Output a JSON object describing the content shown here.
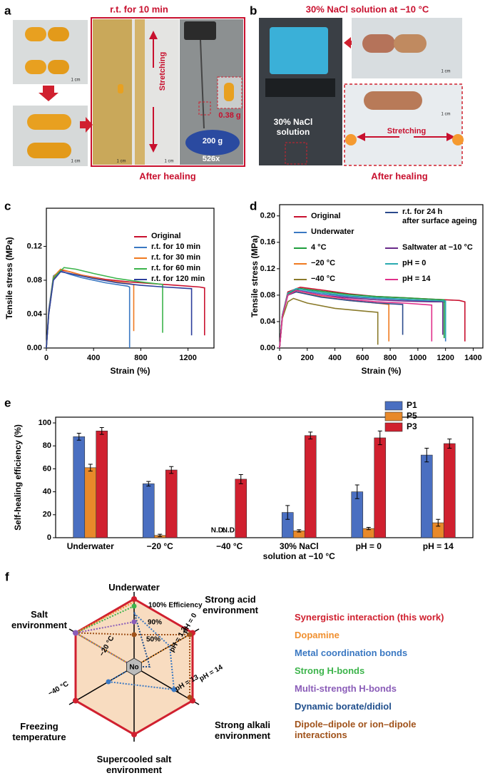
{
  "panel_a": {
    "label": "a",
    "title": "r.t. for 10 min",
    "stretching": "Stretching",
    "weight": "0.38 g",
    "load": "200 g",
    "magnification": "526x",
    "caption": "After healing",
    "scale_bars": [
      "1 cm",
      "1 cm",
      "1 cm",
      "1 cm"
    ]
  },
  "panel_b": {
    "label": "b",
    "title": "30% NaCl solution at −10 °C",
    "solution": "30% NaCl\nsolution",
    "stretching": "Stretching",
    "caption": "After healing",
    "scale_bars": [
      "1 cm",
      "1 cm"
    ]
  },
  "chart_data": [
    {
      "type": "line",
      "panel_label": "c",
      "xlabel": "Strain (%)",
      "ylabel": "Tensile stress (MPa)",
      "xlim": [
        0,
        1420
      ],
      "xticks": [
        0,
        400,
        800,
        1200
      ],
      "ylim": [
        0,
        0.165
      ],
      "yticks": [
        {
          "value": 0,
          "label": "0.00"
        },
        0.04,
        0.08,
        0.12
      ],
      "series": [
        {
          "name": "Original",
          "color": "#c8102e",
          "x": [
            0,
            20,
            60,
            120,
            200,
            300,
            500,
            700,
            900,
            1100,
            1300,
            1340,
            1340
          ],
          "values": [
            0,
            0.04,
            0.082,
            0.092,
            0.09,
            0.086,
            0.081,
            0.078,
            0.076,
            0.074,
            0.072,
            0.071,
            0.015
          ]
        },
        {
          "name": "r.t. for 10 min",
          "color": "#3a78c2",
          "x": [
            0,
            20,
            60,
            120,
            200,
            300,
            500,
            690,
            705,
            705
          ],
          "values": [
            0,
            0.045,
            0.085,
            0.091,
            0.087,
            0.083,
            0.077,
            0.073,
            0.072,
            0
          ]
        },
        {
          "name": "r.t. for 30 min",
          "color": "#f07a20",
          "x": [
            0,
            20,
            60,
            120,
            200,
            300,
            500,
            700,
            740,
            740
          ],
          "values": [
            0,
            0.042,
            0.084,
            0.093,
            0.09,
            0.086,
            0.08,
            0.076,
            0.075,
            0.02
          ]
        },
        {
          "name": "r.t. for 60 min",
          "color": "#3cb44b",
          "x": [
            0,
            20,
            60,
            150,
            250,
            400,
            600,
            800,
            985,
            985
          ],
          "values": [
            0,
            0.04,
            0.083,
            0.095,
            0.093,
            0.088,
            0.082,
            0.078,
            0.075,
            0.018
          ]
        },
        {
          "name": "r.t. for 120 min",
          "color": "#2c3e9c",
          "x": [
            0,
            20,
            60,
            120,
            200,
            400,
            600,
            800,
            1000,
            1230,
            1230
          ],
          "values": [
            0,
            0.04,
            0.08,
            0.09,
            0.088,
            0.082,
            0.077,
            0.074,
            0.072,
            0.07,
            0.015
          ]
        }
      ]
    },
    {
      "type": "line",
      "panel_label": "d",
      "xlabel": "Strain (%)",
      "ylabel": "Tensile stress (MPa)",
      "xlim": [
        0,
        1470
      ],
      "xticks": [
        0,
        200,
        400,
        600,
        800,
        1000,
        1200,
        1400
      ],
      "ylim": [
        0,
        0.217
      ],
      "yticks": [
        {
          "value": 0,
          "label": "0.00"
        },
        0.04,
        0.08,
        0.12,
        0.16,
        {
          "value": 0.2,
          "label": "0.20"
        }
      ],
      "series": [
        {
          "name": "Original",
          "color": "#c8102e",
          "x": [
            0,
            20,
            60,
            150,
            300,
            500,
            700,
            900,
            1100,
            1300,
            1340,
            1340
          ],
          "values": [
            0,
            0.05,
            0.085,
            0.092,
            0.088,
            0.082,
            0.078,
            0.076,
            0.074,
            0.072,
            0.07,
            0.01
          ]
        },
        {
          "name": "Underwater",
          "color": "#3a78c2",
          "x": [
            0,
            20,
            60,
            120,
            300,
            500,
            700,
            900,
            1100,
            1200,
            1200
          ],
          "values": [
            0,
            0.05,
            0.082,
            0.088,
            0.082,
            0.078,
            0.075,
            0.073,
            0.071,
            0.07,
            0.01
          ]
        },
        {
          "name": "4 °C",
          "color": "#1e9e3c",
          "x": [
            0,
            20,
            60,
            150,
            300,
            500,
            700,
            900,
            1100,
            1190,
            1190
          ],
          "values": [
            0,
            0.048,
            0.082,
            0.09,
            0.086,
            0.081,
            0.078,
            0.076,
            0.074,
            0.073,
            0.015
          ]
        },
        {
          "name": "−20 °C",
          "color": "#f07a20",
          "x": [
            0,
            20,
            60,
            120,
            300,
            500,
            700,
            790,
            790
          ],
          "values": [
            0,
            0.05,
            0.08,
            0.085,
            0.078,
            0.072,
            0.068,
            0.066,
            0.01
          ]
        },
        {
          "name": "−40 °C",
          "color": "#8a7a2a",
          "x": [
            0,
            20,
            60,
            100,
            200,
            400,
            600,
            710,
            710
          ],
          "values": [
            0,
            0.045,
            0.07,
            0.075,
            0.068,
            0.06,
            0.056,
            0.054,
            0.005
          ]
        },
        {
          "name": "r.t. for 24 h\nafter surface ageing",
          "color": "#2b4a8c",
          "x": [
            0,
            20,
            60,
            120,
            300,
            500,
            700,
            890,
            890
          ],
          "values": [
            0,
            0.05,
            0.08,
            0.085,
            0.077,
            0.072,
            0.068,
            0.066,
            0.02
          ]
        },
        {
          "name": "Saltwater at −10 °C",
          "color": "#6a2a8a",
          "x": [
            0,
            20,
            60,
            120,
            300,
            500,
            700,
            900,
            1100,
            1180,
            1180
          ],
          "values": [
            0,
            0.05,
            0.08,
            0.087,
            0.08,
            0.076,
            0.073,
            0.071,
            0.07,
            0.07,
            0.02
          ]
        },
        {
          "name": "pH = 0",
          "color": "#2aaab0",
          "x": [
            0,
            20,
            60,
            120,
            300,
            500,
            700,
            900,
            1100,
            1200,
            1200
          ],
          "values": [
            0,
            0.05,
            0.083,
            0.09,
            0.084,
            0.079,
            0.076,
            0.074,
            0.072,
            0.071,
            0.015
          ]
        },
        {
          "name": "pH = 14",
          "color": "#e0308a",
          "x": [
            0,
            20,
            60,
            120,
            300,
            500,
            700,
            900,
            1100,
            1100
          ],
          "values": [
            0,
            0.048,
            0.08,
            0.087,
            0.08,
            0.074,
            0.07,
            0.068,
            0.065,
            0.01
          ]
        }
      ]
    },
    {
      "type": "bar",
      "panel_label": "e",
      "ylabel": "Self-healing efficiency (%)",
      "categories": [
        "Underwater",
        "−20 °C",
        "−40 °C",
        "30% NaCl\nsolution at −10 °C",
        "pH = 0",
        "pH = 14"
      ],
      "ylim": [
        0,
        105
      ],
      "yticks": [
        0,
        20,
        40,
        60,
        80,
        100
      ],
      "series": [
        {
          "name": "P1",
          "color": "#4a6fc1",
          "values": [
            88,
            47,
            null,
            22,
            40,
            72
          ],
          "errors": [
            3,
            2,
            null,
            6,
            6,
            6
          ],
          "value_labels": [
            null,
            null,
            "N.D.",
            null,
            null,
            null
          ]
        },
        {
          "name": "P5",
          "color": "#e8892a",
          "values": [
            61,
            2,
            null,
            6,
            8,
            13
          ],
          "errors": [
            3,
            1,
            null,
            1,
            1,
            3
          ],
          "value_labels": [
            null,
            null,
            "N.D.",
            null,
            null,
            null
          ]
        },
        {
          "name": "P3",
          "color": "#d0202f",
          "values": [
            93,
            59,
            51,
            89,
            87,
            82
          ],
          "errors": [
            3,
            3,
            4,
            3,
            6,
            4
          ],
          "value_labels": [
            null,
            null,
            null,
            null,
            null,
            null
          ]
        }
      ]
    }
  ],
  "diagram_f": {
    "panel_label": "f",
    "axes": [
      "Underwater",
      "Strong acid\nenvironment",
      "Strong alkali\nenvironment",
      "Supercooled salt\nenvironment",
      "Freezing\ntemperature",
      "Salt\nenvironment"
    ],
    "scale_labels": [
      "100% Efficiency",
      "90%",
      "50%",
      "No"
    ],
    "condition_labels": [
      "pH = 1.3",
      "pH = 0",
      "pH = 13",
      "pH = 14",
      "−20 °C",
      "−40 °C"
    ],
    "legend": [
      {
        "label": "Synergistic interaction (this work)",
        "color": "#d0202f"
      },
      {
        "label": "Dopamine",
        "color": "#f09030"
      },
      {
        "label": "Metal coordination bonds",
        "color": "#3a78c2"
      },
      {
        "label": "Strong H-bonds",
        "color": "#3cb44b"
      },
      {
        "label": "Multi-strength H-bonds",
        "color": "#8a5cb8"
      },
      {
        "label": "Dynamic borate/didiol",
        "color": "#1f4e8c"
      },
      {
        "label": "Dipole–dipole or ion–dipole\ninteractions",
        "color": "#a0521a"
      }
    ]
  }
}
